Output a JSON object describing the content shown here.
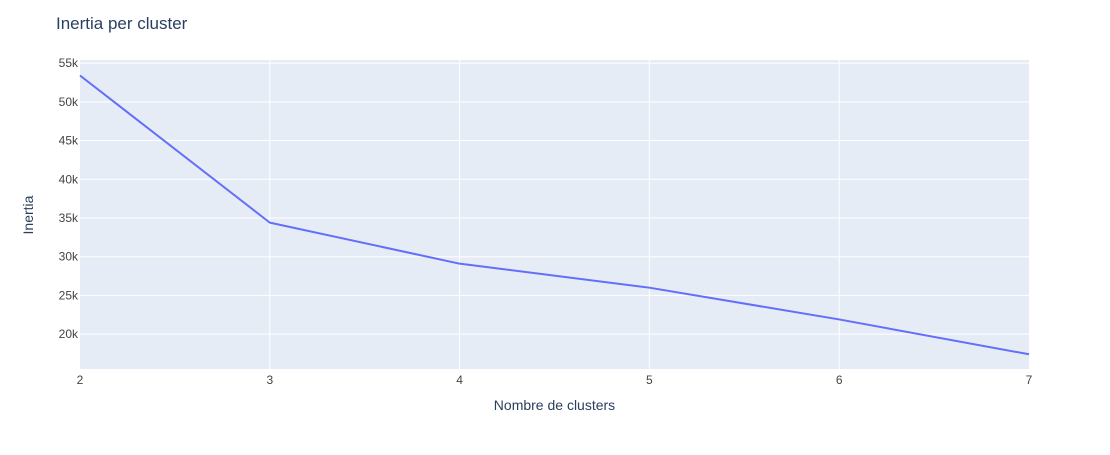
{
  "chart_data": {
    "type": "line",
    "title": "Inertia per cluster",
    "xlabel": "Nombre de clusters",
    "ylabel": "Inertia",
    "x": [
      2,
      3,
      4,
      5,
      6,
      7
    ],
    "series": [
      {
        "values": [
          53400,
          34400,
          29100,
          26000,
          21900,
          17400
        ],
        "color": "#636efa"
      }
    ],
    "xlim": [
      2,
      7
    ],
    "ylim": [
      15500,
      55400
    ],
    "xticks": [
      2,
      3,
      4,
      5,
      6,
      7
    ],
    "xtick_labels": [
      "2",
      "3",
      "4",
      "5",
      "6",
      "7"
    ],
    "yticks": [
      20000,
      25000,
      30000,
      35000,
      40000,
      45000,
      50000,
      55000
    ],
    "ytick_labels": [
      "20k",
      "25k",
      "30k",
      "35k",
      "40k",
      "45k",
      "50k",
      "55k"
    ],
    "grid": true,
    "legend": "none",
    "plot_bg": "#e5ecf6",
    "grid_color": "#ffffff",
    "text_color": "#2a3f5f",
    "tick_color": "#444444"
  }
}
